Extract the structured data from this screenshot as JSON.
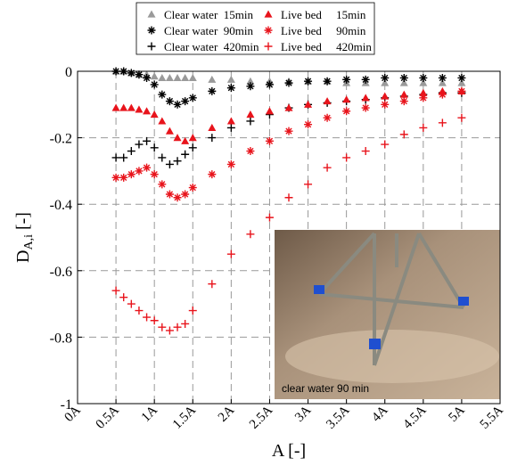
{
  "chart_data": {
    "type": "scatter",
    "xlabel": "A [-]",
    "ylabel": {
      "main": "D",
      "sub": "A,i",
      "unit": "[-]"
    },
    "inset_caption": "clear water 90 min",
    "xlim": [
      0,
      5.5
    ],
    "ylim": [
      -1,
      0
    ],
    "xticks": [
      {
        "value": 0,
        "label": "0A"
      },
      {
        "value": 0.5,
        "label": "0.5A"
      },
      {
        "value": 1,
        "label": "1A"
      },
      {
        "value": 1.5,
        "label": "1.5A"
      },
      {
        "value": 2,
        "label": "2A"
      },
      {
        "value": 2.5,
        "label": "2.5A"
      },
      {
        "value": 3,
        "label": "3A"
      },
      {
        "value": 3.5,
        "label": "3.5A"
      },
      {
        "value": 4,
        "label": "4A"
      },
      {
        "value": 4.5,
        "label": "4.5A"
      },
      {
        "value": 5,
        "label": "5A"
      },
      {
        "value": 5.5,
        "label": "5.5A"
      }
    ],
    "yticks": [
      0,
      -0.2,
      -0.4,
      -0.6,
      -0.8,
      -1
    ],
    "grid": true,
    "x": [
      0.5,
      0.6,
      0.7,
      0.8,
      0.9,
      1.0,
      1.1,
      1.2,
      1.3,
      1.4,
      1.5,
      1.75,
      2,
      2.25,
      2.5,
      2.75,
      3,
      3.25,
      3.5,
      3.75,
      4,
      4.25,
      4.5,
      4.75,
      5
    ],
    "series": [
      {
        "name": "Clear water  15min",
        "color": "#9a9a9a",
        "marker": "triangle",
        "values": [
          0,
          0,
          -0.005,
          -0.01,
          -0.01,
          -0.015,
          -0.02,
          -0.02,
          -0.02,
          -0.02,
          -0.02,
          -0.025,
          -0.025,
          -0.03,
          -0.03,
          -0.03,
          -0.03,
          -0.03,
          -0.035,
          -0.035,
          -0.035,
          -0.035,
          -0.035,
          -0.035,
          -0.035
        ]
      },
      {
        "name": "Clear water  90min",
        "color": "#000000",
        "marker": "star",
        "values": [
          0,
          0,
          -0.005,
          -0.01,
          -0.02,
          -0.04,
          -0.07,
          -0.09,
          -0.1,
          -0.09,
          -0.08,
          -0.06,
          -0.05,
          -0.045,
          -0.04,
          -0.035,
          -0.03,
          -0.03,
          -0.025,
          -0.025,
          -0.02,
          -0.02,
          -0.02,
          -0.02,
          -0.02
        ]
      },
      {
        "name": "Clear water  420min",
        "color": "#000000",
        "marker": "plus",
        "values": [
          -0.26,
          -0.26,
          -0.24,
          -0.22,
          -0.21,
          -0.23,
          -0.26,
          -0.28,
          -0.27,
          -0.25,
          -0.23,
          -0.2,
          -0.17,
          -0.15,
          -0.13,
          -0.11,
          -0.1,
          -0.095,
          -0.09,
          -0.085,
          -0.08,
          -0.075,
          -0.07,
          -0.065,
          -0.065
        ]
      },
      {
        "name": "Live bed     15min",
        "color": "#e8141c",
        "marker": "triangle",
        "values": [
          -0.11,
          -0.11,
          -0.11,
          -0.115,
          -0.12,
          -0.13,
          -0.15,
          -0.18,
          -0.2,
          -0.21,
          -0.2,
          -0.17,
          -0.15,
          -0.13,
          -0.12,
          -0.11,
          -0.1,
          -0.09,
          -0.085,
          -0.08,
          -0.075,
          -0.07,
          -0.065,
          -0.06,
          -0.06
        ]
      },
      {
        "name": "Live bed     90min",
        "color": "#e8141c",
        "marker": "star",
        "values": [
          -0.32,
          -0.32,
          -0.31,
          -0.3,
          -0.29,
          -0.31,
          -0.34,
          -0.37,
          -0.38,
          -0.37,
          -0.35,
          -0.31,
          -0.28,
          -0.24,
          -0.21,
          -0.18,
          -0.16,
          -0.14,
          -0.12,
          -0.11,
          -0.1,
          -0.09,
          -0.08,
          -0.07,
          -0.06
        ]
      },
      {
        "name": "Live bed     420min",
        "color": "#e8141c",
        "marker": "plus",
        "values": [
          -0.66,
          -0.68,
          -0.7,
          -0.72,
          -0.74,
          -0.75,
          -0.77,
          -0.78,
          -0.77,
          -0.76,
          -0.72,
          -0.64,
          -0.55,
          -0.49,
          -0.44,
          -0.38,
          -0.34,
          -0.29,
          -0.26,
          -0.24,
          -0.22,
          -0.19,
          -0.17,
          -0.155,
          -0.14
        ]
      }
    ]
  }
}
